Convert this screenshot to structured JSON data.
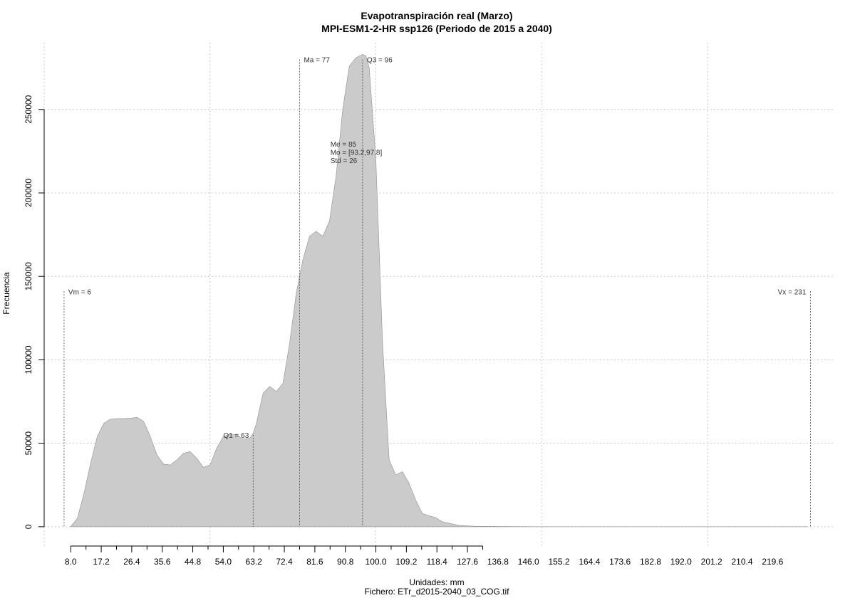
{
  "chart_data": {
    "type": "area",
    "title": "Evapotranspiración real (Marzo)",
    "subtitle": "MPI-ESM1-2-HR ssp126 (Periodo de 2015 a 2040)",
    "xlabel": "Unidades: mm",
    "caption": "Fichero: ETr_d2015-2040_03_COG.tif",
    "ylabel": "Frecuencia",
    "xlim": [
      0,
      238
    ],
    "ylim": [
      -12000,
      290000
    ],
    "x_ticks": [
      "8.0",
      "17.2",
      "26.4",
      "35.6",
      "44.8",
      "54.0",
      "63.2",
      "72.4",
      "81.6",
      "90.8",
      "100.0",
      "109.2",
      "118.4",
      "127.6",
      "136.8",
      "146.0",
      "155.2",
      "164.4",
      "173.6",
      "182.8",
      "192.0",
      "201.2",
      "210.4",
      "219.6"
    ],
    "y_ticks": [
      0,
      50000,
      100000,
      150000,
      200000,
      250000
    ],
    "grid": true,
    "fill_color": "#cbcbcb",
    "x": [
      8,
      10,
      12,
      14,
      16,
      18,
      20,
      22,
      24,
      26,
      28,
      30,
      32,
      34,
      36,
      38,
      40,
      42,
      44,
      46,
      48,
      50,
      52,
      54,
      56,
      58,
      60,
      62,
      63,
      64,
      66,
      68,
      70,
      72,
      74,
      76,
      78,
      80,
      82,
      84,
      86,
      88,
      90,
      92,
      94,
      96,
      97,
      98,
      100,
      102,
      104,
      106,
      108,
      110,
      112,
      114,
      116,
      118,
      120,
      125,
      130,
      140,
      150,
      160,
      180,
      200,
      220,
      230
    ],
    "values": [
      0,
      5000,
      20000,
      38000,
      54000,
      62000,
      64500,
      64800,
      64800,
      65000,
      65500,
      63000,
      54000,
      43000,
      37500,
      37000,
      40000,
      44000,
      45000,
      41000,
      35500,
      37000,
      47000,
      54000,
      55500,
      55000,
      52500,
      53000,
      56000,
      62000,
      80000,
      84000,
      81000,
      86000,
      110000,
      140000,
      160000,
      174000,
      177000,
      174000,
      183000,
      210000,
      250000,
      276000,
      281000,
      283000,
      282000,
      275000,
      220000,
      110000,
      40000,
      31000,
      33000,
      26000,
      16000,
      8000,
      6500,
      5500,
      3000,
      800,
      300,
      100,
      50,
      20,
      0,
      0,
      0,
      0
    ],
    "markers": [
      {
        "label": "Vm = 6",
        "x": 6,
        "y": 141000,
        "align": "start"
      },
      {
        "label": "Q1 = 63",
        "x": 63,
        "y": 55000,
        "align": "end"
      },
      {
        "label": "Ma = 77",
        "x": 77,
        "y": 280000,
        "align": "start"
      },
      {
        "label": "Q3 = 96",
        "x": 96,
        "y": 280000,
        "align": "start"
      },
      {
        "label": "Vx = 231",
        "x": 231,
        "y": 141000,
        "align": "end"
      }
    ],
    "stats": {
      "x": 96,
      "lines": [
        "Me = 85",
        "Mo = [93.2,97.8]",
        "Std = 26"
      ]
    }
  }
}
